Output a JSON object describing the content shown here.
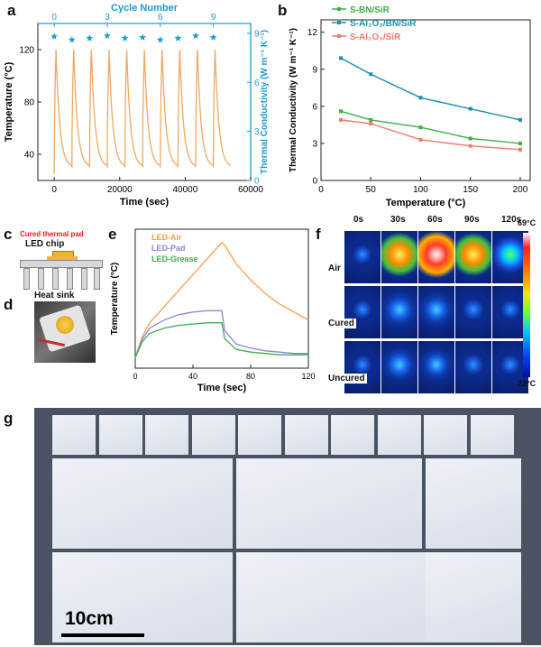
{
  "panels": {
    "a": "a",
    "b": "b",
    "c": "c",
    "d": "d",
    "e": "e",
    "f": "f",
    "g": "g"
  },
  "chart_data": [
    {
      "id": "a",
      "type": "line",
      "xlabel": "Time (sec)",
      "ylabel": "Temperature (°C)",
      "y2label": "Thermal Conductivity (W m⁻¹ K⁻¹)",
      "top_xlabel": "Cycle Number",
      "xlim": [
        -5000,
        60000
      ],
      "ylim": [
        20,
        140
      ],
      "y2lim": [
        0,
        9.6
      ],
      "xticks": [
        0,
        20000,
        40000,
        60000
      ],
      "yticks": [
        40,
        80,
        120
      ],
      "y2ticks": [
        0,
        3,
        6,
        9
      ],
      "top_ticks": [
        0,
        3,
        6,
        9
      ],
      "cycles": 10,
      "cycle_period_sec": 5400,
      "heat_max": 120,
      "cool_min": 30,
      "colors": {
        "temperature": "#f0a860",
        "conductivity": "#1a9cd6"
      },
      "series": [
        {
          "name": "Thermal Conductivity",
          "axis": "right",
          "marker": "star",
          "x": [
            0,
            5400,
            10800,
            16200,
            21600,
            27000,
            32400,
            37800,
            43200,
            48600
          ],
          "y": [
            8.8,
            8.6,
            8.7,
            8.85,
            8.7,
            8.75,
            8.6,
            8.7,
            8.85,
            8.75
          ]
        }
      ]
    },
    {
      "id": "b",
      "type": "line",
      "xlabel": "Temperature (°C)",
      "ylabel": "Thermal Conductivity (W m⁻¹ K⁻¹)",
      "xlim": [
        0,
        210
      ],
      "ylim": [
        0,
        13
      ],
      "xticks": [
        0,
        50,
        100,
        150,
        200
      ],
      "yticks": [
        0,
        3,
        6,
        9,
        12
      ],
      "legend": "top-left",
      "series": [
        {
          "name": "S-BN/SiR",
          "color": "#3fae49",
          "x": [
            20,
            50,
            100,
            150,
            200
          ],
          "y": [
            5.6,
            4.9,
            4.3,
            3.4,
            3.0
          ]
        },
        {
          "name": "S-Al₂O₃/BN/SiR",
          "color": "#1a8fb0",
          "x": [
            20,
            50,
            100,
            150,
            200
          ],
          "y": [
            9.9,
            8.6,
            6.7,
            5.8,
            4.9
          ]
        },
        {
          "name": "S-Al₂O₃/SiR",
          "color": "#f07a6c",
          "x": [
            20,
            50,
            100,
            150,
            200
          ],
          "y": [
            4.9,
            4.6,
            3.3,
            2.8,
            2.5
          ]
        }
      ]
    },
    {
      "id": "e",
      "type": "line",
      "xlabel": "Time (sec)",
      "ylabel": "Temperature (°C)",
      "xlim": [
        0,
        120
      ],
      "ylim": [
        20,
        72
      ],
      "xticks": [
        0,
        40,
        80,
        120
      ],
      "yticks": [
        30,
        40,
        50,
        60,
        70
      ],
      "legend": "top-left",
      "series": [
        {
          "name": "LED-Air",
          "color": "#f5a04a",
          "x": [
            0,
            5,
            10,
            20,
            30,
            40,
            50,
            60,
            62,
            70,
            80,
            90,
            100,
            110,
            120
          ],
          "y": [
            24,
            32,
            37,
            43,
            49,
            55,
            61,
            67,
            66,
            59,
            53,
            48,
            44,
            41,
            38
          ]
        },
        {
          "name": "LED-Pad",
          "color": "#8a86d8",
          "x": [
            0,
            5,
            10,
            20,
            30,
            40,
            50,
            60,
            62,
            70,
            80,
            90,
            100,
            110,
            120
          ],
          "y": [
            24,
            31,
            35,
            38,
            40,
            41,
            41.5,
            41.5,
            34,
            29,
            27.5,
            26.5,
            26,
            25.5,
            25.5
          ]
        },
        {
          "name": "LED-Grease",
          "color": "#3fae49",
          "x": [
            0,
            5,
            10,
            20,
            30,
            40,
            50,
            60,
            62,
            70,
            80,
            90,
            100,
            110,
            120
          ],
          "y": [
            24,
            30,
            33,
            35,
            36,
            36.5,
            37,
            37,
            31,
            27,
            26,
            25.5,
            25,
            25,
            25
          ]
        }
      ]
    }
  ],
  "panel_c": {
    "pad_label": "Cured thermal pad",
    "chip_label": "LED chip",
    "sink_label": "Heat sink"
  },
  "panel_f": {
    "times": [
      "0s",
      "30s",
      "60s",
      "90s",
      "120s"
    ],
    "rows": [
      "Air",
      "Cured",
      "Uncured"
    ],
    "scale_max": "69°C",
    "scale_min": "22°C",
    "hotness": [
      [
        0.05,
        0.85,
        1.0,
        0.8,
        0.45
      ],
      [
        0.05,
        0.4,
        0.35,
        0.2,
        0.1
      ],
      [
        0.05,
        0.35,
        0.25,
        0.15,
        0.1
      ]
    ]
  },
  "panel_g": {
    "scale_bar_label": "10cm"
  }
}
